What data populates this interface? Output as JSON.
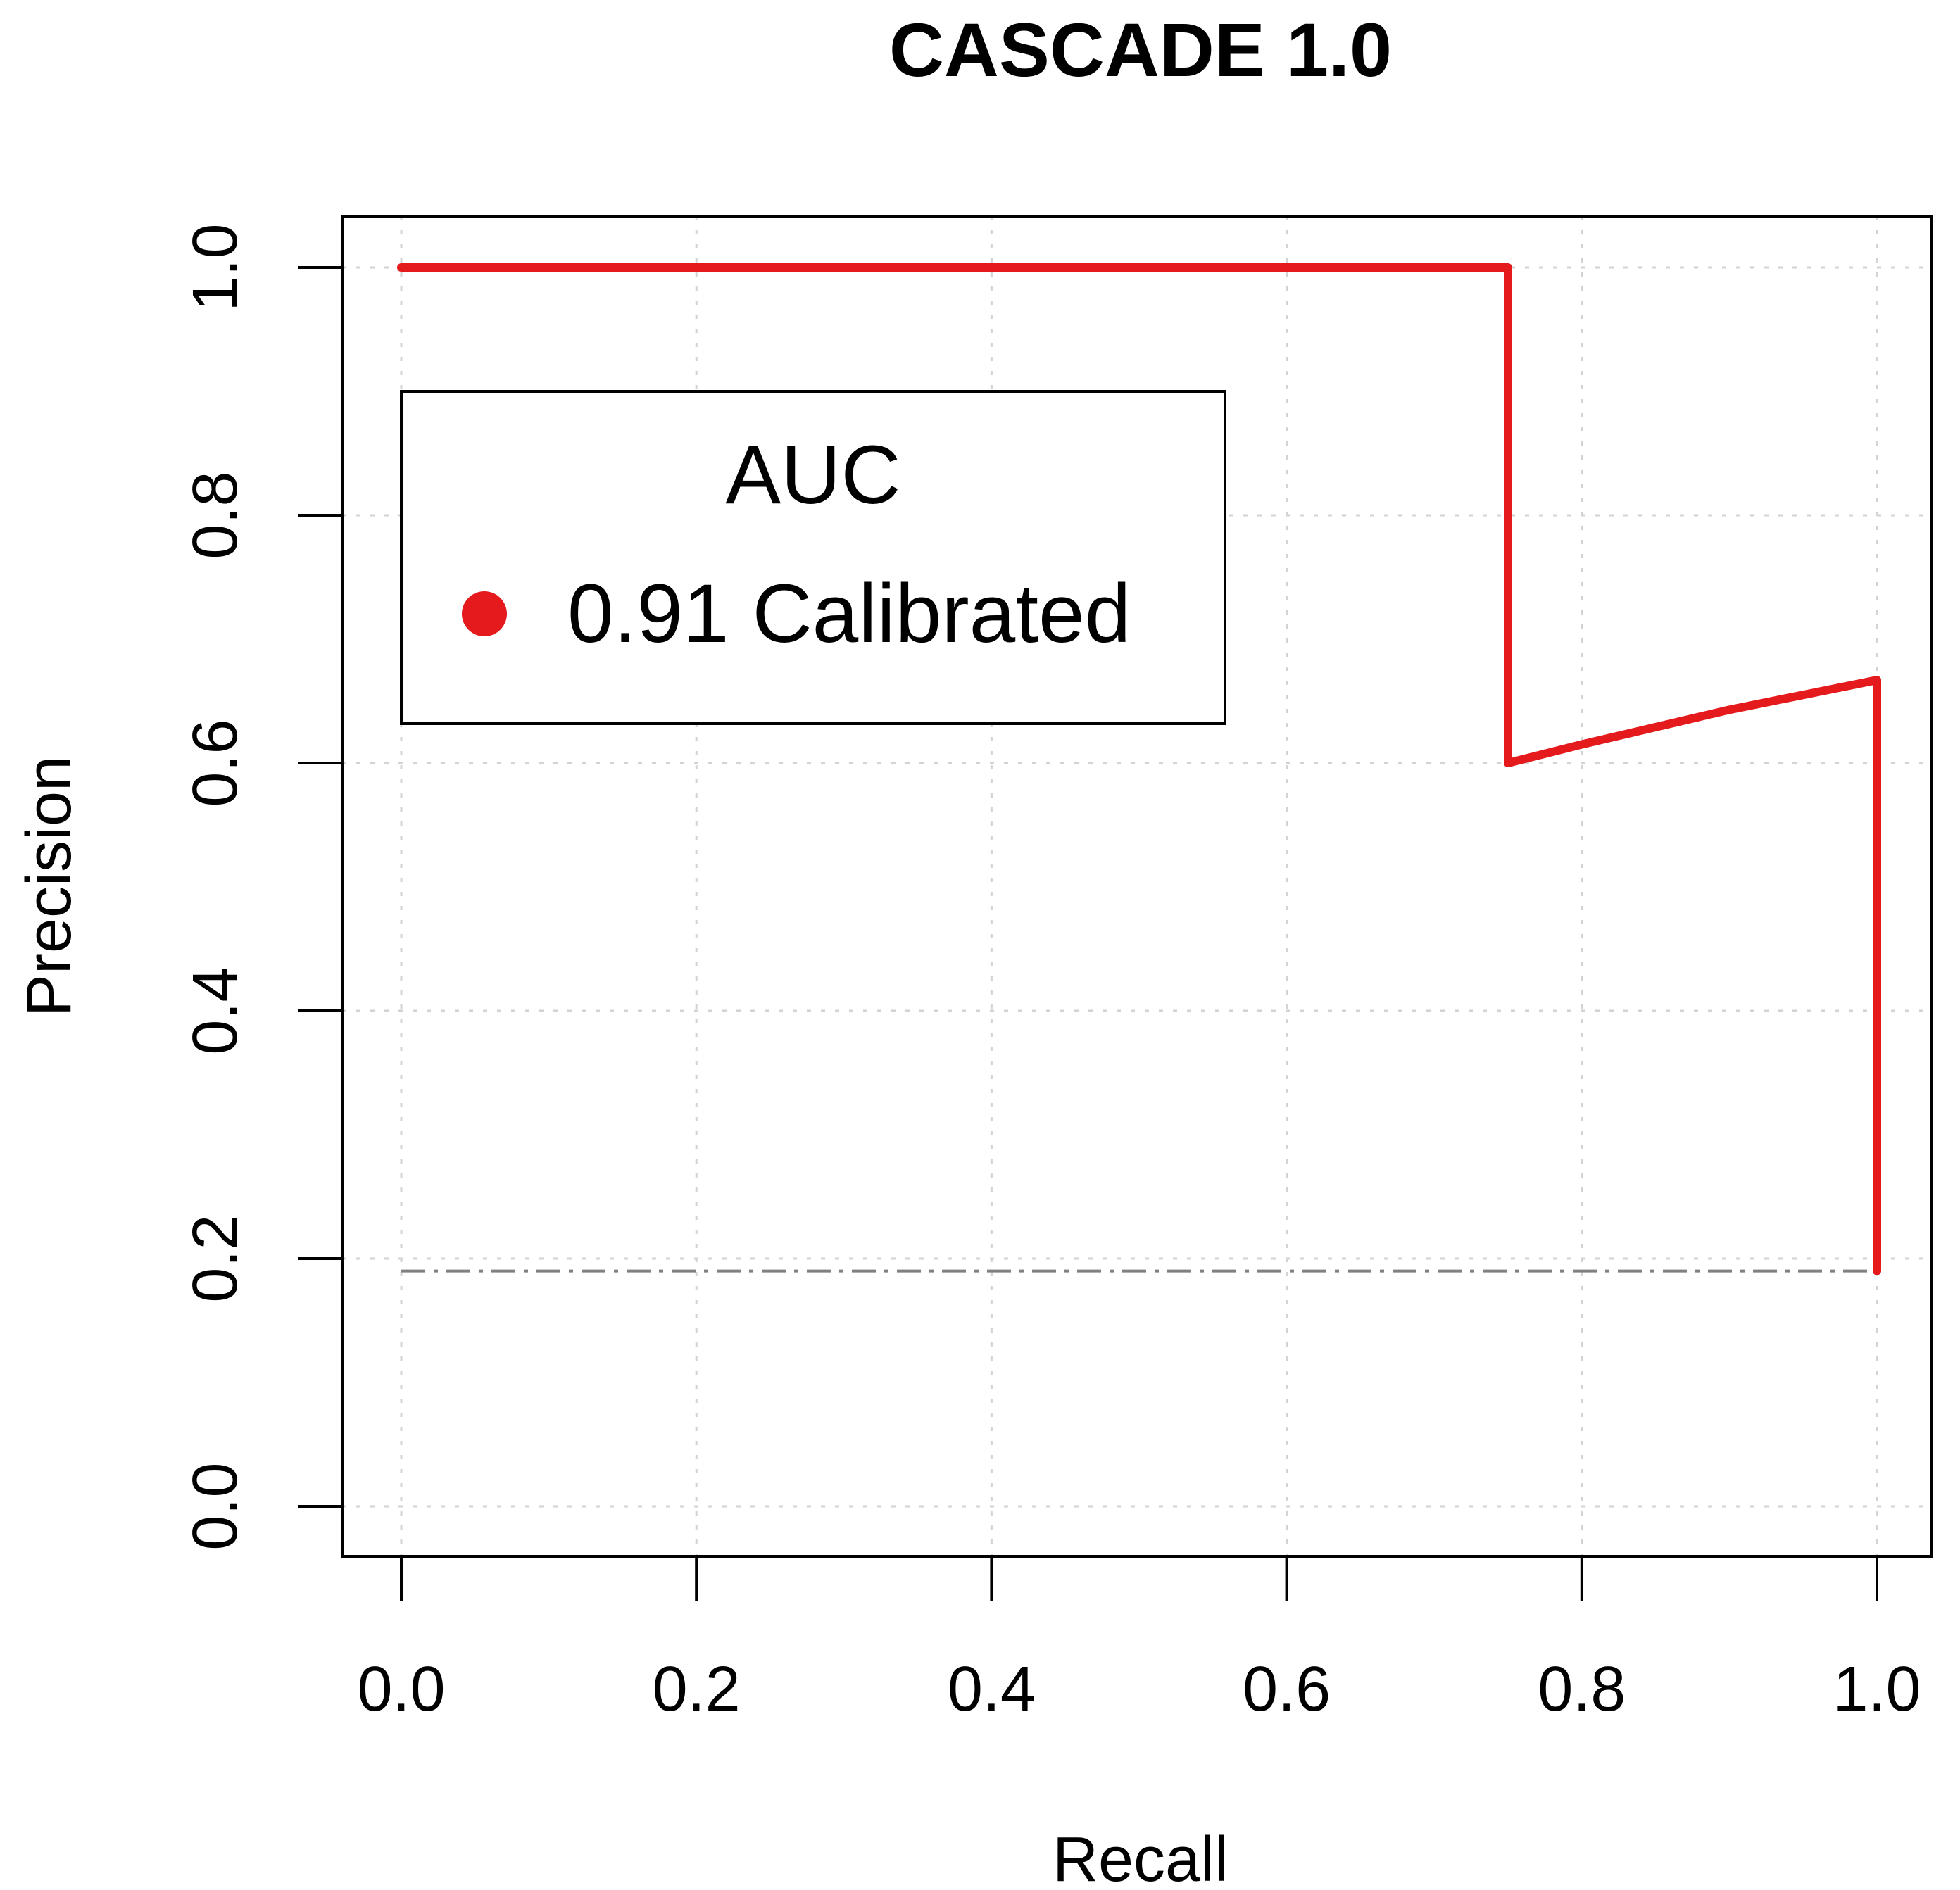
{
  "chart_data": {
    "type": "line",
    "title": "CASCADE 1.0",
    "xlabel": "Recall",
    "ylabel": "Precision",
    "xlim": [
      0,
      1
    ],
    "ylim": [
      0,
      1
    ],
    "xticks": [
      "0.0",
      "0.2",
      "0.4",
      "0.6",
      "0.8",
      "1.0"
    ],
    "yticks": [
      "0.0",
      "0.2",
      "0.4",
      "0.6",
      "0.8",
      "1.0"
    ],
    "xtick_values": [
      0,
      0.2,
      0.4,
      0.6,
      0.8,
      1.0
    ],
    "ytick_values": [
      0,
      0.2,
      0.4,
      0.6,
      0.8,
      1.0
    ],
    "grid": true,
    "series": [
      {
        "name": "0.91 Calibrated",
        "color": "#e41a1c",
        "x": [
          0,
          0.75,
          0.75,
          0.8,
          0.9,
          1.0,
          1.0
        ],
        "y": [
          1.0,
          1.0,
          0.6,
          0.615,
          0.643,
          0.667,
          0.19
        ]
      }
    ],
    "baseline": {
      "y": 0.19,
      "x": [
        0,
        1
      ],
      "color": "#808080",
      "style": "dash-dot"
    },
    "legend": {
      "title": "AUC",
      "position": "top-left",
      "entries": [
        {
          "label": "0.91 Calibrated",
          "color": "#e41a1c"
        }
      ]
    }
  }
}
